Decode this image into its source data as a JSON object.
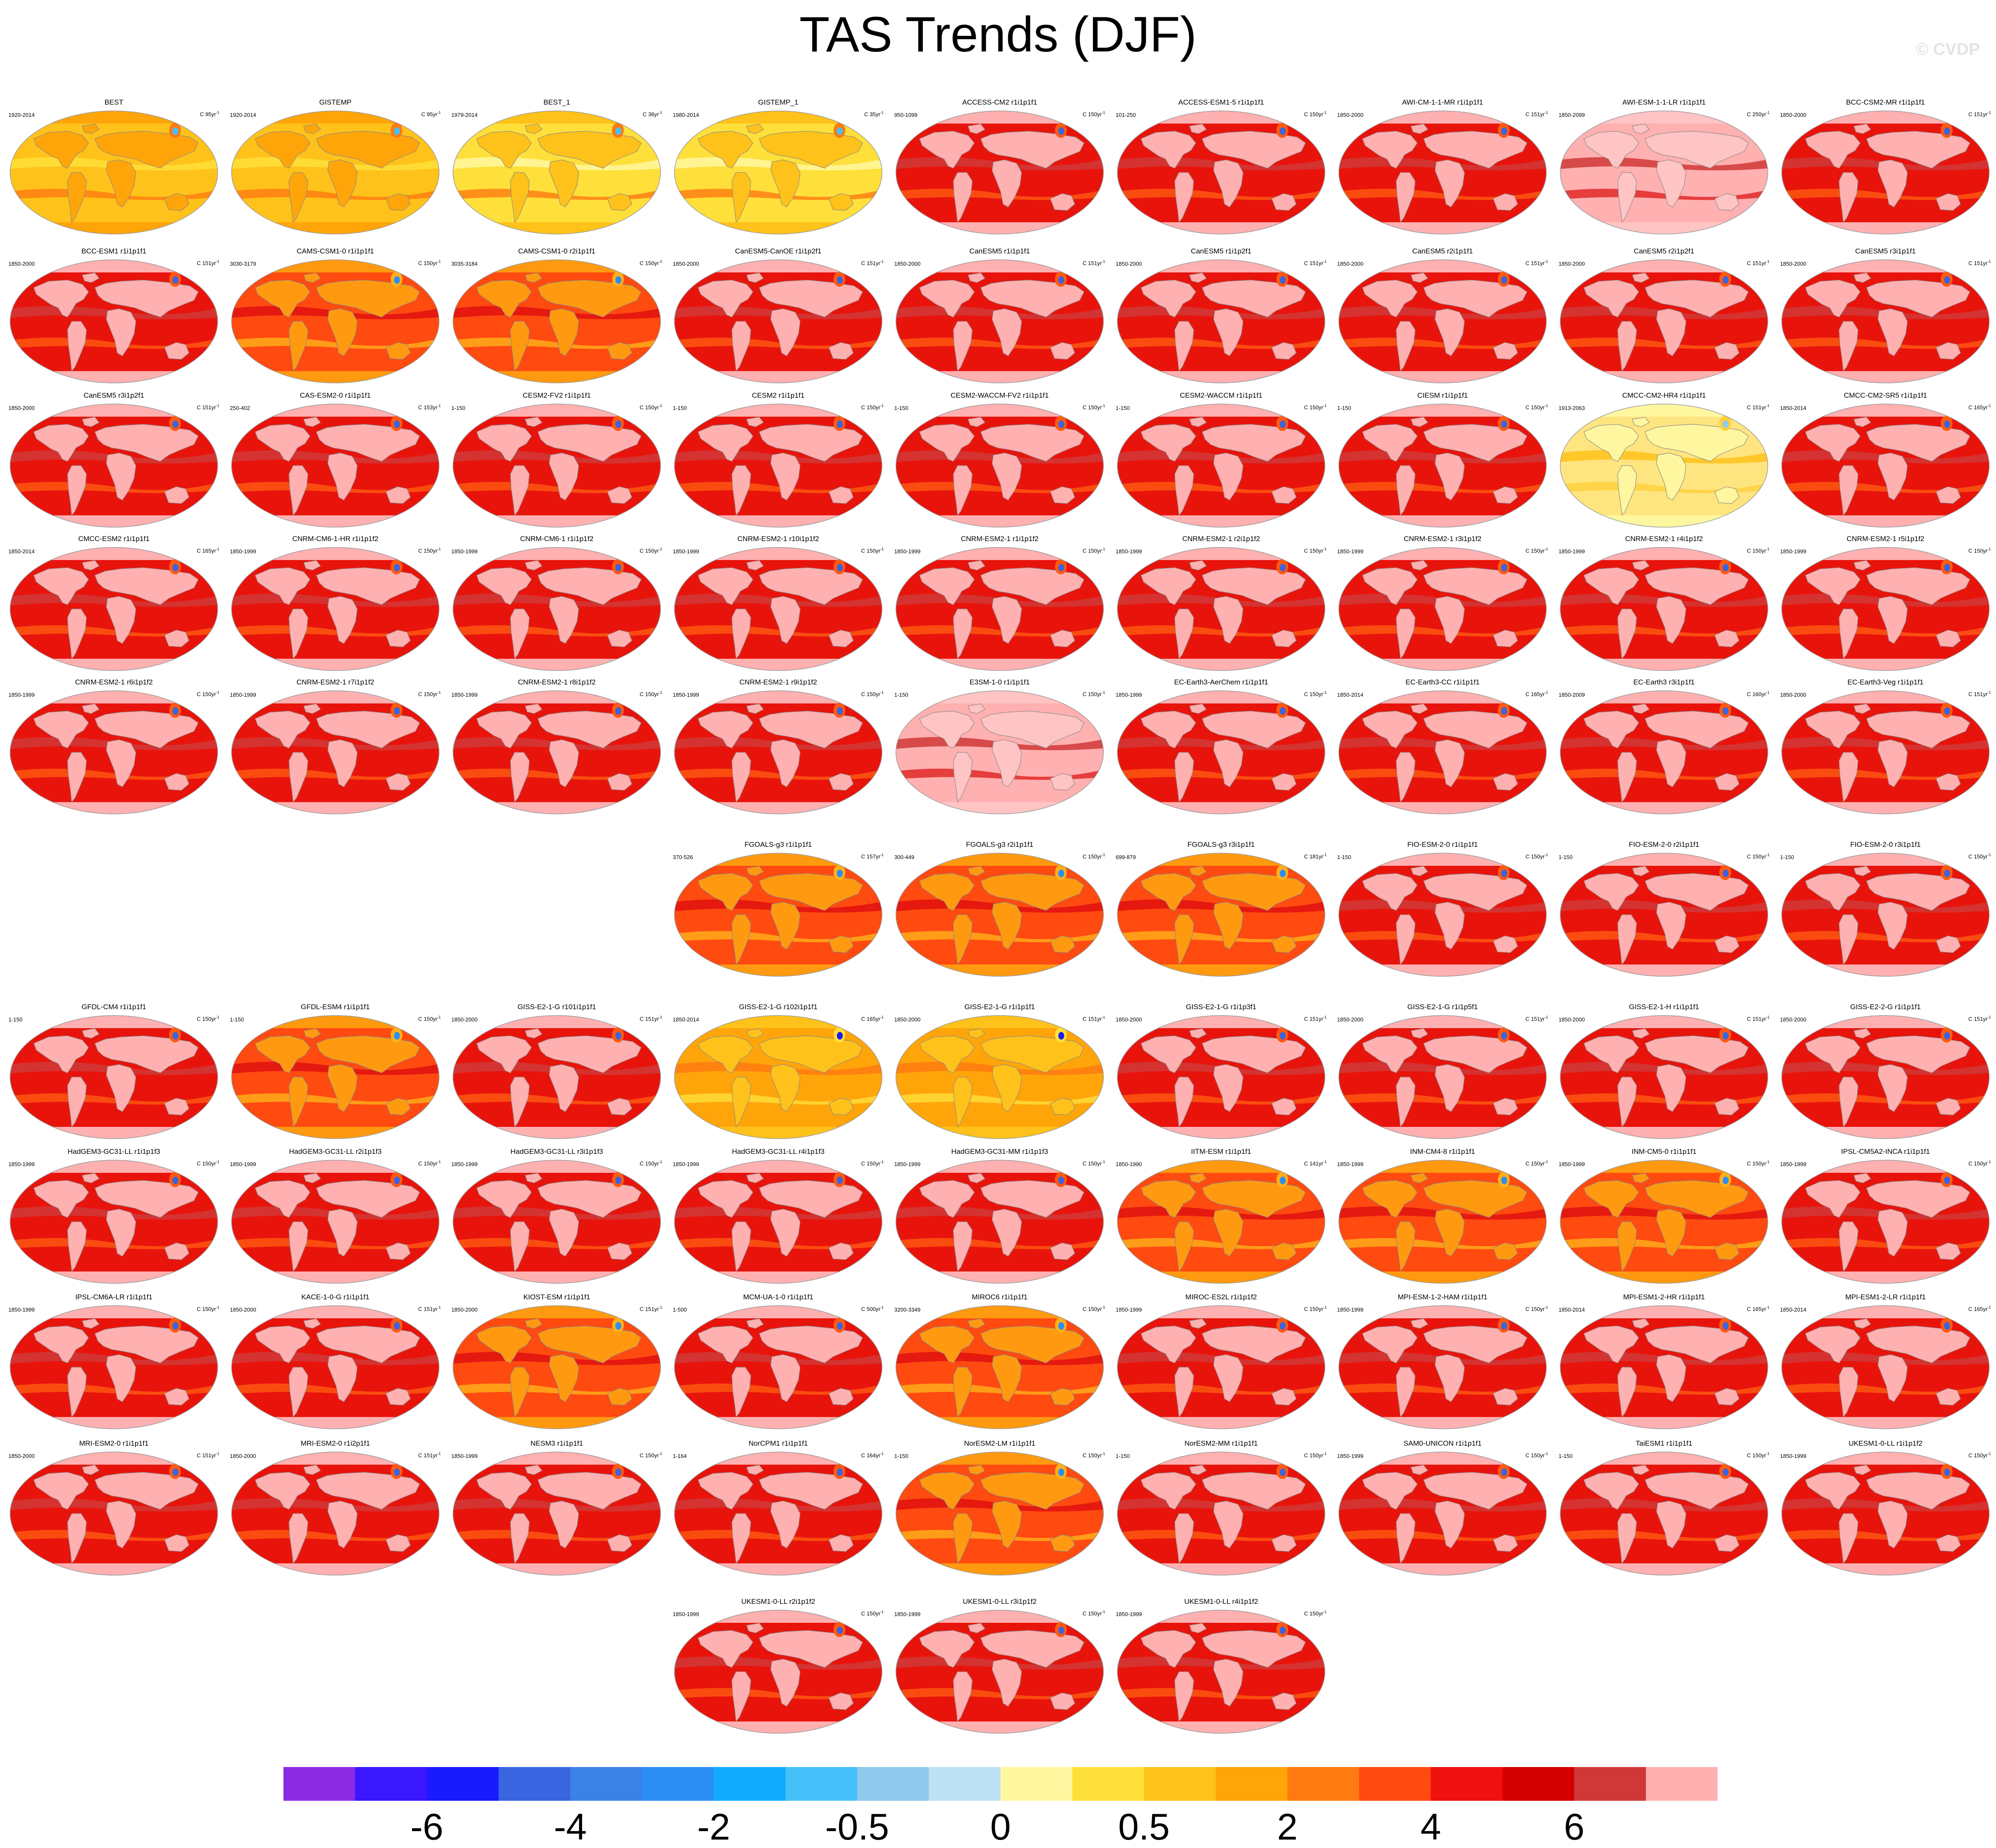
{
  "title": "TAS Trends (DJF)",
  "watermark": "© CVDP",
  "units_superscript": "-1",
  "colorbar": {
    "colors": [
      "#8a2be2",
      "#3a17ff",
      "#1a1aff",
      "#3a64e0",
      "#3b82e6",
      "#2b8ef5",
      "#10aaff",
      "#45c0f8",
      "#8fcaec",
      "#bee2f5",
      "#fff7a0",
      "#ffe03a",
      "#ffc21a",
      "#ffa50a",
      "#ff7a10",
      "#ff4a10",
      "#f01010",
      "#d40000",
      "#d03838",
      "#ffb0b0"
    ],
    "labels": [
      "-6",
      "-4",
      "-2",
      "-0.5",
      "0",
      "0.5",
      "2",
      "4",
      "6"
    ],
    "label_boundary_index": [
      2,
      4,
      6,
      8,
      10,
      12,
      14,
      16,
      18
    ]
  },
  "panels": [
    {
      "name": "BEST",
      "range": "1920-2014",
      "years": "C 95yr",
      "style": "obs1"
    },
    {
      "name": "GISTEMP",
      "range": "1920-2014",
      "years": "C 95yr",
      "style": "obs1"
    },
    {
      "name": "BEST_1",
      "range": "1979-2014",
      "years": "C 36yr",
      "style": "obs2"
    },
    {
      "name": "GISTEMP_1",
      "range": "1980-2014",
      "years": "C 35yr",
      "style": "obs2"
    },
    {
      "name": "ACCESS-CM2 r1i1p1f1",
      "range": "950-1099",
      "years": "C 150yr",
      "style": "red"
    },
    {
      "name": "ACCESS-ESM1-5 r1i1p1f1",
      "range": "101-250",
      "years": "C 150yr",
      "style": "red"
    },
    {
      "name": "AWI-CM-1-1-MR r1i1p1f1",
      "range": "1850-2000",
      "years": "C 151yr",
      "style": "red"
    },
    {
      "name": "AWI-ESM-1-1-LR r1i1p1f1",
      "range": "1850-2099",
      "years": "C 250yr",
      "style": "pink"
    },
    {
      "name": "BCC-CSM2-MR r1i1p1f1",
      "range": "1850-2000",
      "years": "C 151yr",
      "style": "red"
    },
    {
      "name": "BCC-ESM1 r1i1p1f1",
      "range": "1850-2000",
      "years": "C 151yr",
      "style": "red"
    },
    {
      "name": "CAMS-CSM1-0 r1i1p1f1",
      "range": "3030-3179",
      "years": "C 150yr",
      "style": "orange"
    },
    {
      "name": "CAMS-CSM1-0 r2i1p1f1",
      "range": "3035-3184",
      "years": "C 150yr",
      "style": "orange"
    },
    {
      "name": "CanESM5-CanOE r1i1p2f1",
      "range": "1850-2000",
      "years": "C 151yr",
      "style": "red"
    },
    {
      "name": "CanESM5 r1i1p1f1",
      "range": "1850-2000",
      "years": "C 151yr",
      "style": "red"
    },
    {
      "name": "CanESM5 r1i1p2f1",
      "range": "1850-2000",
      "years": "C 151yr",
      "style": "red"
    },
    {
      "name": "CanESM5 r2i1p1f1",
      "range": "1850-2000",
      "years": "C 151yr",
      "style": "red"
    },
    {
      "name": "CanESM5 r2i1p2f1",
      "range": "1850-2000",
      "years": "C 151yr",
      "style": "red"
    },
    {
      "name": "CanESM5 r3i1p1f1",
      "range": "1850-2000",
      "years": "C 151yr",
      "style": "red"
    },
    {
      "name": "CanESM5 r3i1p2f1",
      "range": "1850-2000",
      "years": "C 151yr",
      "style": "red"
    },
    {
      "name": "CAS-ESM2-0 r1i1p1f1",
      "range": "250-402",
      "years": "C 153yr",
      "style": "red"
    },
    {
      "name": "CESM2-FV2 r1i1p1f1",
      "range": "1-150",
      "years": "C 150yr",
      "style": "red"
    },
    {
      "name": "CESM2 r1i1p1f1",
      "range": "1-150",
      "years": "C 150yr",
      "style": "red"
    },
    {
      "name": "CESM2-WACCM-FV2 r1i1p1f1",
      "range": "1-150",
      "years": "C 150yr",
      "style": "red"
    },
    {
      "name": "CESM2-WACCM r1i1p1f1",
      "range": "1-150",
      "years": "C 150yr",
      "style": "red"
    },
    {
      "name": "CIESM r1i1p1f1",
      "range": "1-150",
      "years": "C 150yr",
      "style": "red"
    },
    {
      "name": "CMCC-CM2-HR4 r1i1p1f1",
      "range": "1913-2063",
      "years": "C 151yr",
      "style": "yellow"
    },
    {
      "name": "CMCC-CM2-SR5 r1i1p1f1",
      "range": "1850-2014",
      "years": "C 165yr",
      "style": "red"
    },
    {
      "name": "CMCC-ESM2 r1i1p1f1",
      "range": "1850-2014",
      "years": "C 165yr",
      "style": "red"
    },
    {
      "name": "CNRM-CM6-1-HR r1i1p1f2",
      "range": "1850-1999",
      "years": "C 150yr",
      "style": "red"
    },
    {
      "name": "CNRM-CM6-1 r1i1p1f2",
      "range": "1850-1999",
      "years": "C 150yr",
      "style": "red"
    },
    {
      "name": "CNRM-ESM2-1 r10i1p1f2",
      "range": "1850-1999",
      "years": "C 150yr",
      "style": "red"
    },
    {
      "name": "CNRM-ESM2-1 r1i1p1f2",
      "range": "1850-1999",
      "years": "C 150yr",
      "style": "red"
    },
    {
      "name": "CNRM-ESM2-1 r2i1p1f2",
      "range": "1850-1999",
      "years": "C 150yr",
      "style": "red"
    },
    {
      "name": "CNRM-ESM2-1 r3i1p1f2",
      "range": "1850-1999",
      "years": "C 150yr",
      "style": "red"
    },
    {
      "name": "CNRM-ESM2-1 r4i1p1f2",
      "range": "1850-1999",
      "years": "C 150yr",
      "style": "red"
    },
    {
      "name": "CNRM-ESM2-1 r5i1p1f2",
      "range": "1850-1999",
      "years": "C 150yr",
      "style": "red"
    },
    {
      "name": "CNRM-ESM2-1 r6i1p1f2",
      "range": "1850-1999",
      "years": "C 150yr",
      "style": "red"
    },
    {
      "name": "CNRM-ESM2-1 r7i1p1f2",
      "range": "1850-1999",
      "years": "C 150yr",
      "style": "red"
    },
    {
      "name": "CNRM-ESM2-1 r8i1p1f2",
      "range": "1850-1999",
      "years": "C 150yr",
      "style": "red"
    },
    {
      "name": "CNRM-ESM2-1 r9i1p1f2",
      "range": "1850-1999",
      "years": "C 150yr",
      "style": "red"
    },
    {
      "name": "E3SM-1-0 r1i1p1f1",
      "range": "1-150",
      "years": "C 150yr",
      "style": "pink"
    },
    {
      "name": "EC-Earth3-AerChem r1i1p1f1",
      "range": "1850-1999",
      "years": "C 150yr",
      "style": "red"
    },
    {
      "name": "EC-Earth3-CC r1i1p1f1",
      "range": "1850-2014",
      "years": "C 165yr",
      "style": "red"
    },
    {
      "name": "EC-Earth3 r3i1p1f1",
      "range": "1850-2009",
      "years": "C 160yr",
      "style": "red"
    },
    {
      "name": "EC-Earth3-Veg r1i1p1f1",
      "range": "1850-2000",
      "years": "C 151yr",
      "style": "red"
    },
    {
      "name": "FGOALS-g3 r1i1p1f1",
      "range": "370-526",
      "years": "C 157yr",
      "style": "orange"
    },
    {
      "name": "FGOALS-g3 r2i1p1f1",
      "range": "300-449",
      "years": "C 150yr",
      "style": "orange"
    },
    {
      "name": "FGOALS-g3 r3i1p1f1",
      "range": "699-879",
      "years": "C 181yr",
      "style": "orange"
    },
    {
      "name": "FIO-ESM-2-0 r1i1p1f1",
      "range": "1-150",
      "years": "C 150yr",
      "style": "red"
    },
    {
      "name": "FIO-ESM-2-0 r2i1p1f1",
      "range": "1-150",
      "years": "C 150yr",
      "style": "red"
    },
    {
      "name": "FIO-ESM-2-0 r3i1p1f1",
      "range": "1-150",
      "years": "C 150yr",
      "style": "red"
    },
    {
      "name": "GFDL-CM4 r1i1p1f1",
      "range": "1-150",
      "years": "C 150yr",
      "style": "red"
    },
    {
      "name": "GFDL-ESM4 r1i1p1f1",
      "range": "1-150",
      "years": "C 150yr",
      "style": "orange"
    },
    {
      "name": "GISS-E2-1-G r101i1p1f1",
      "range": "1850-2000",
      "years": "C 151yr",
      "style": "red"
    },
    {
      "name": "GISS-E2-1-G r102i1p1f1",
      "range": "1850-2014",
      "years": "C 165yr",
      "style": "lightorange"
    },
    {
      "name": "GISS-E2-1-G r1i1p1f1",
      "range": "1850-2000",
      "years": "C 151yr",
      "style": "lightorange"
    },
    {
      "name": "GISS-E2-1-G r1i1p3f1",
      "range": "1850-2000",
      "years": "C 151yr",
      "style": "red"
    },
    {
      "name": "GISS-E2-1-G r1i1p5f1",
      "range": "1850-2000",
      "years": "C 151yr",
      "style": "red"
    },
    {
      "name": "GISS-E2-1-H r1i1p1f1",
      "range": "1850-2000",
      "years": "C 151yr",
      "style": "red"
    },
    {
      "name": "GISS-E2-2-G r1i1p1f1",
      "range": "1850-2000",
      "years": "C 151yr",
      "style": "red"
    },
    {
      "name": "HadGEM3-GC31-LL r1i1p1f3",
      "range": "1850-1999",
      "years": "C 150yr",
      "style": "red"
    },
    {
      "name": "HadGEM3-GC31-LL r2i1p1f3",
      "range": "1850-1999",
      "years": "C 150yr",
      "style": "red"
    },
    {
      "name": "HadGEM3-GC31-LL r3i1p1f3",
      "range": "1850-1999",
      "years": "C 150yr",
      "style": "red"
    },
    {
      "name": "HadGEM3-GC31-LL r4i1p1f3",
      "range": "1850-1999",
      "years": "C 150yr",
      "style": "red"
    },
    {
      "name": "HadGEM3-GC31-MM r1i1p1f3",
      "range": "1850-1999",
      "years": "C 150yr",
      "style": "red"
    },
    {
      "name": "IITM-ESM r1i1p1f1",
      "range": "1850-1990",
      "years": "C 141yr",
      "style": "orange"
    },
    {
      "name": "INM-CM4-8 r1i1p1f1",
      "range": "1850-1999",
      "years": "C 150yr",
      "style": "orange"
    },
    {
      "name": "INM-CM5-0 r1i1p1f1",
      "range": "1850-1999",
      "years": "C 150yr",
      "style": "orange"
    },
    {
      "name": "IPSL-CM5A2-INCA r1i1p1f1",
      "range": "1850-1999",
      "years": "C 150yr",
      "style": "red"
    },
    {
      "name": "IPSL-CM6A-LR r1i1p1f1",
      "range": "1850-1999",
      "years": "C 150yr",
      "style": "red"
    },
    {
      "name": "KACE-1-0-G r1i1p1f1",
      "range": "1850-2000",
      "years": "C 151yr",
      "style": "red"
    },
    {
      "name": "KIOST-ESM r1i1p1f1",
      "range": "1850-2000",
      "years": "C 151yr",
      "style": "orange"
    },
    {
      "name": "MCM-UA-1-0 r1i1p1f1",
      "range": "1-500",
      "years": "C 500yr",
      "style": "red"
    },
    {
      "name": "MIROC6 r1i1p1f1",
      "range": "3200-3349",
      "years": "C 150yr",
      "style": "orange"
    },
    {
      "name": "MIROC-ES2L r1i1p1f2",
      "range": "1850-1999",
      "years": "C 150yr",
      "style": "red"
    },
    {
      "name": "MPI-ESM-1-2-HAM r1i1p1f1",
      "range": "1850-1999",
      "years": "C 150yr",
      "style": "red"
    },
    {
      "name": "MPI-ESM1-2-HR r1i1p1f1",
      "range": "1850-2014",
      "years": "C 165yr",
      "style": "red"
    },
    {
      "name": "MPI-ESM1-2-LR r1i1p1f1",
      "range": "1850-2014",
      "years": "C 165yr",
      "style": "red"
    },
    {
      "name": "MRI-ESM2-0 r1i1p1f1",
      "range": "1850-2000",
      "years": "C 151yr",
      "style": "red"
    },
    {
      "name": "MRI-ESM2-0 r1i2p1f1",
      "range": "1850-2000",
      "years": "C 151yr",
      "style": "red"
    },
    {
      "name": "NESM3 r1i1p1f1",
      "range": "1850-1999",
      "years": "C 150yr",
      "style": "red"
    },
    {
      "name": "NorCPM1 r1i1p1f1",
      "range": "1-164",
      "years": "C 164yr",
      "style": "red"
    },
    {
      "name": "NorESM2-LM r1i1p1f1",
      "range": "1-150",
      "years": "C 150yr",
      "style": "orange"
    },
    {
      "name": "NorESM2-MM r1i1p1f1",
      "range": "1-150",
      "years": "C 150yr",
      "style": "red"
    },
    {
      "name": "SAM0-UNICON r1i1p1f1",
      "range": "1850-1999",
      "years": "C 150yr",
      "style": "red"
    },
    {
      "name": "TaiESM1 r1i1p1f1",
      "range": "1-150",
      "years": "C 150yr",
      "style": "red"
    },
    {
      "name": "UKESM1-0-LL r1i1p1f2",
      "range": "1850-1999",
      "years": "C 150yr",
      "style": "red"
    },
    {
      "name": "UKESM1-0-LL r2i1p1f2",
      "range": "1850-1999",
      "years": "C 150yr",
      "style": "red"
    },
    {
      "name": "UKESM1-0-LL r3i1p1f2",
      "range": "1850-1999",
      "years": "C 150yr",
      "style": "red"
    },
    {
      "name": "UKESM1-0-LL r4i1p1f2",
      "range": "1850-1999",
      "years": "C 150yr",
      "style": "red"
    }
  ]
}
